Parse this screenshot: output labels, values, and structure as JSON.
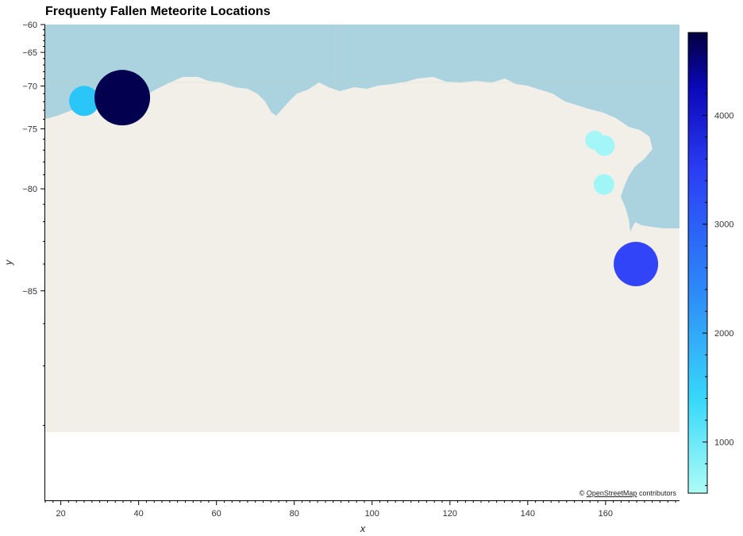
{
  "title": "Frequenty Fallen Meteorite Locations",
  "attribution": {
    "prefix": "©",
    "link_text": "OpenStreetMap",
    "suffix": "contributors"
  },
  "colors": {
    "water": "#aad3df",
    "land": "#f2efe9",
    "background": "#ffffff"
  },
  "chart_data": {
    "type": "scatter",
    "title": "Frequenty Fallen Meteorite Locations",
    "xlabel": "x",
    "ylabel": "y",
    "xlim": [
      16,
      179
    ],
    "ylim": [
      -88.8,
      -60
    ],
    "y_scale": "mercator",
    "x_ticks": [
      20,
      40,
      60,
      80,
      100,
      120,
      140,
      160
    ],
    "y_ticks": [
      -60,
      -65,
      -70,
      -75,
      -80,
      -85
    ],
    "grid": false,
    "colorbar": {
      "colormap": "cyan-blue-navy",
      "min": 530,
      "max": 4760,
      "ticks": [
        1000,
        2000,
        3000,
        4000
      ]
    },
    "points": [
      {
        "x": 26.0,
        "y": -71.9,
        "count": 1550,
        "size": 38,
        "color": "#29c6f7"
      },
      {
        "x": 35.8,
        "y": -71.5,
        "count": 4760,
        "size": 70,
        "color": "#03004f"
      },
      {
        "x": 157.2,
        "y": -76.1,
        "count": 650,
        "size": 24,
        "color": "#a6f6f7"
      },
      {
        "x": 159.7,
        "y": -76.6,
        "count": 650,
        "size": 26,
        "color": "#a2f6f7"
      },
      {
        "x": 159.6,
        "y": -79.7,
        "count": 620,
        "size": 26,
        "color": "#a0f5f7"
      },
      {
        "x": 167.8,
        "y": -84.0,
        "count": 3350,
        "size": 56,
        "color": "#3244f8"
      }
    ]
  }
}
